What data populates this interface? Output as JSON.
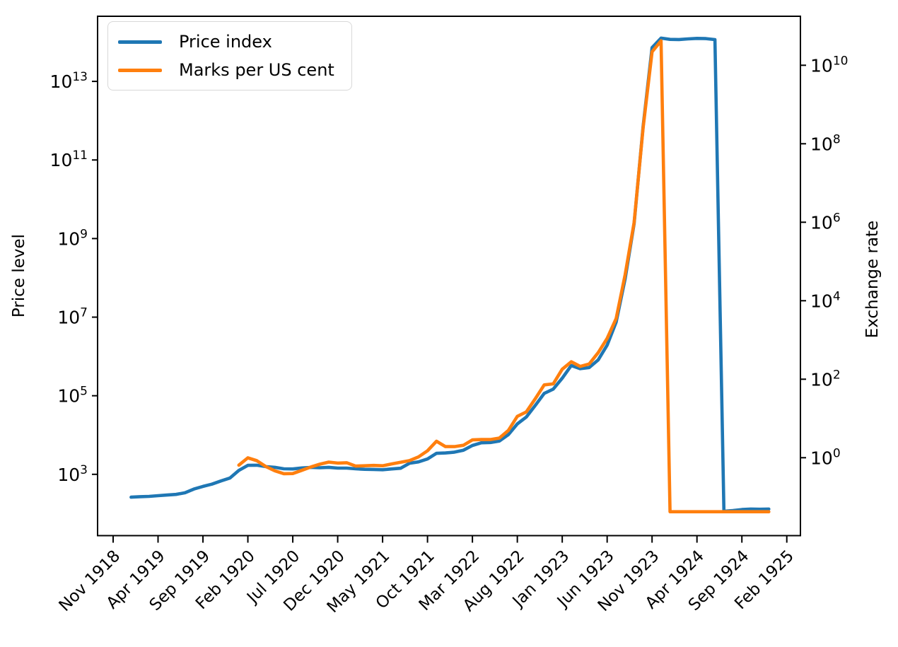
{
  "figure": {
    "background": "#ffffff",
    "legend": {
      "position": "upper left",
      "items": [
        {
          "label": "Price index",
          "color": "#1f77b4"
        },
        {
          "label": "Marks per US cent",
          "color": "#ff7f0e"
        }
      ]
    },
    "left_axis": {
      "title": "Price level",
      "tick_exponents": [
        3,
        5,
        7,
        9,
        11,
        13
      ]
    },
    "right_axis": {
      "title": "Exchange rate",
      "tick_exponents": [
        0,
        2,
        4,
        6,
        8,
        10
      ]
    },
    "x_axis": {
      "tick_labels": [
        "Nov 1918",
        "Apr 1919",
        "Sep 1919",
        "Feb 1920",
        "Jul 1920",
        "Dec 1920",
        "May 1921",
        "Oct 1921",
        "Mar 1922",
        "Aug 1922",
        "Jan 1923",
        "Jun 1923",
        "Nov 1923",
        "Apr 1924",
        "Sep 1924",
        "Feb 1925"
      ]
    }
  },
  "chart_data": {
    "type": "line",
    "title": "",
    "xlabel": "",
    "ylabel_left": "Price level",
    "ylabel_right": "Exchange rate",
    "y_scale": "log",
    "grid": false,
    "legend_position": "upper left",
    "ylim_left": [
      26,
      480000000000000.0
    ],
    "ylim_right": [
      0.01,
      180000000000.0
    ],
    "x": [
      "Jan 1919",
      "Feb 1919",
      "Mar 1919",
      "Apr 1919",
      "May 1919",
      "Jun 1919",
      "Jul 1919",
      "Aug 1919",
      "Sep 1919",
      "Oct 1919",
      "Nov 1919",
      "Dec 1919",
      "Jan 1920",
      "Feb 1920",
      "Mar 1920",
      "Apr 1920",
      "May 1920",
      "Jun 1920",
      "Jul 1920",
      "Aug 1920",
      "Sep 1920",
      "Oct 1920",
      "Nov 1920",
      "Dec 1920",
      "Jan 1921",
      "Feb 1921",
      "Mar 1921",
      "Apr 1921",
      "May 1921",
      "Jun 1921",
      "Jul 1921",
      "Aug 1921",
      "Sep 1921",
      "Oct 1921",
      "Nov 1921",
      "Dec 1921",
      "Jan 1922",
      "Feb 1922",
      "Mar 1922",
      "Apr 1922",
      "May 1922",
      "Jun 1922",
      "Jul 1922",
      "Aug 1922",
      "Sep 1922",
      "Oct 1922",
      "Nov 1922",
      "Dec 1922",
      "Jan 1923",
      "Feb 1923",
      "Mar 1923",
      "Apr 1923",
      "May 1923",
      "Jun 1923",
      "Jul 1923",
      "Aug 1923",
      "Sep 1923",
      "Oct 1923",
      "Nov 1923",
      "Dec 1923",
      "Jan 1924",
      "Feb 1924",
      "Mar 1924",
      "Apr 1924",
      "May 1924",
      "Jun 1924",
      "Jul 1924",
      "Aug 1924",
      "Sep 1924",
      "Oct 1924",
      "Nov 1924",
      "Dec 1924"
    ],
    "series": [
      {
        "name": "Price index",
        "axis": "left",
        "color": "#1f77b4",
        "values": [
          262,
          270,
          274,
          286,
          297,
          308,
          339,
          422,
          493,
          562,
          678,
          803,
          1260,
          1690,
          1710,
          1570,
          1510,
          1380,
          1370,
          1450,
          1500,
          1470,
          1510,
          1440,
          1440,
          1380,
          1340,
          1330,
          1310,
          1370,
          1430,
          1920,
          2070,
          2460,
          3420,
          3490,
          3670,
          4100,
          5430,
          6360,
          6460,
          7030,
          10160,
          19200,
          28700,
          56600,
          115100,
          147480,
          278500,
          588500,
          488800,
          521200,
          817000,
          1938500,
          7478700,
          94404100,
          2394889300,
          709480000000.0,
          72570000000000.0,
          126160000000000.0,
          117320000000000.0,
          116170000000000.0,
          120670000000000.0,
          124050000000000.0,
          122460000000000.0,
          115900000000000.0,
          115,
          120,
          127,
          131,
          129,
          131
        ]
      },
      {
        "name": "Marks per US cent",
        "axis": "right",
        "color": "#ff7f0e",
        "values": [
          null,
          null,
          null,
          null,
          null,
          null,
          null,
          null,
          null,
          null,
          null,
          null,
          0.648,
          0.991,
          0.839,
          0.596,
          0.465,
          0.391,
          0.395,
          0.476,
          0.579,
          0.682,
          0.772,
          0.73,
          0.745,
          0.613,
          0.624,
          0.635,
          0.623,
          0.694,
          0.767,
          0.843,
          1.049,
          1.502,
          2.629,
          1.918,
          1.918,
          2.078,
          2.842,
          2.91,
          2.901,
          3.174,
          4.932,
          11.346,
          14.659,
          31.808,
          71.831,
          75.893,
          179.7,
          279.2,
          211.9,
          244.8,
          476.7,
          1100,
          3534,
          46205,
          988600,
          252600000.0,
          22000000000.0,
          42000000000.0,
          0.042,
          0.042,
          0.042,
          0.042,
          0.042,
          0.042,
          0.042,
          0.042,
          0.042,
          0.042,
          0.042,
          0.042
        ]
      }
    ]
  }
}
